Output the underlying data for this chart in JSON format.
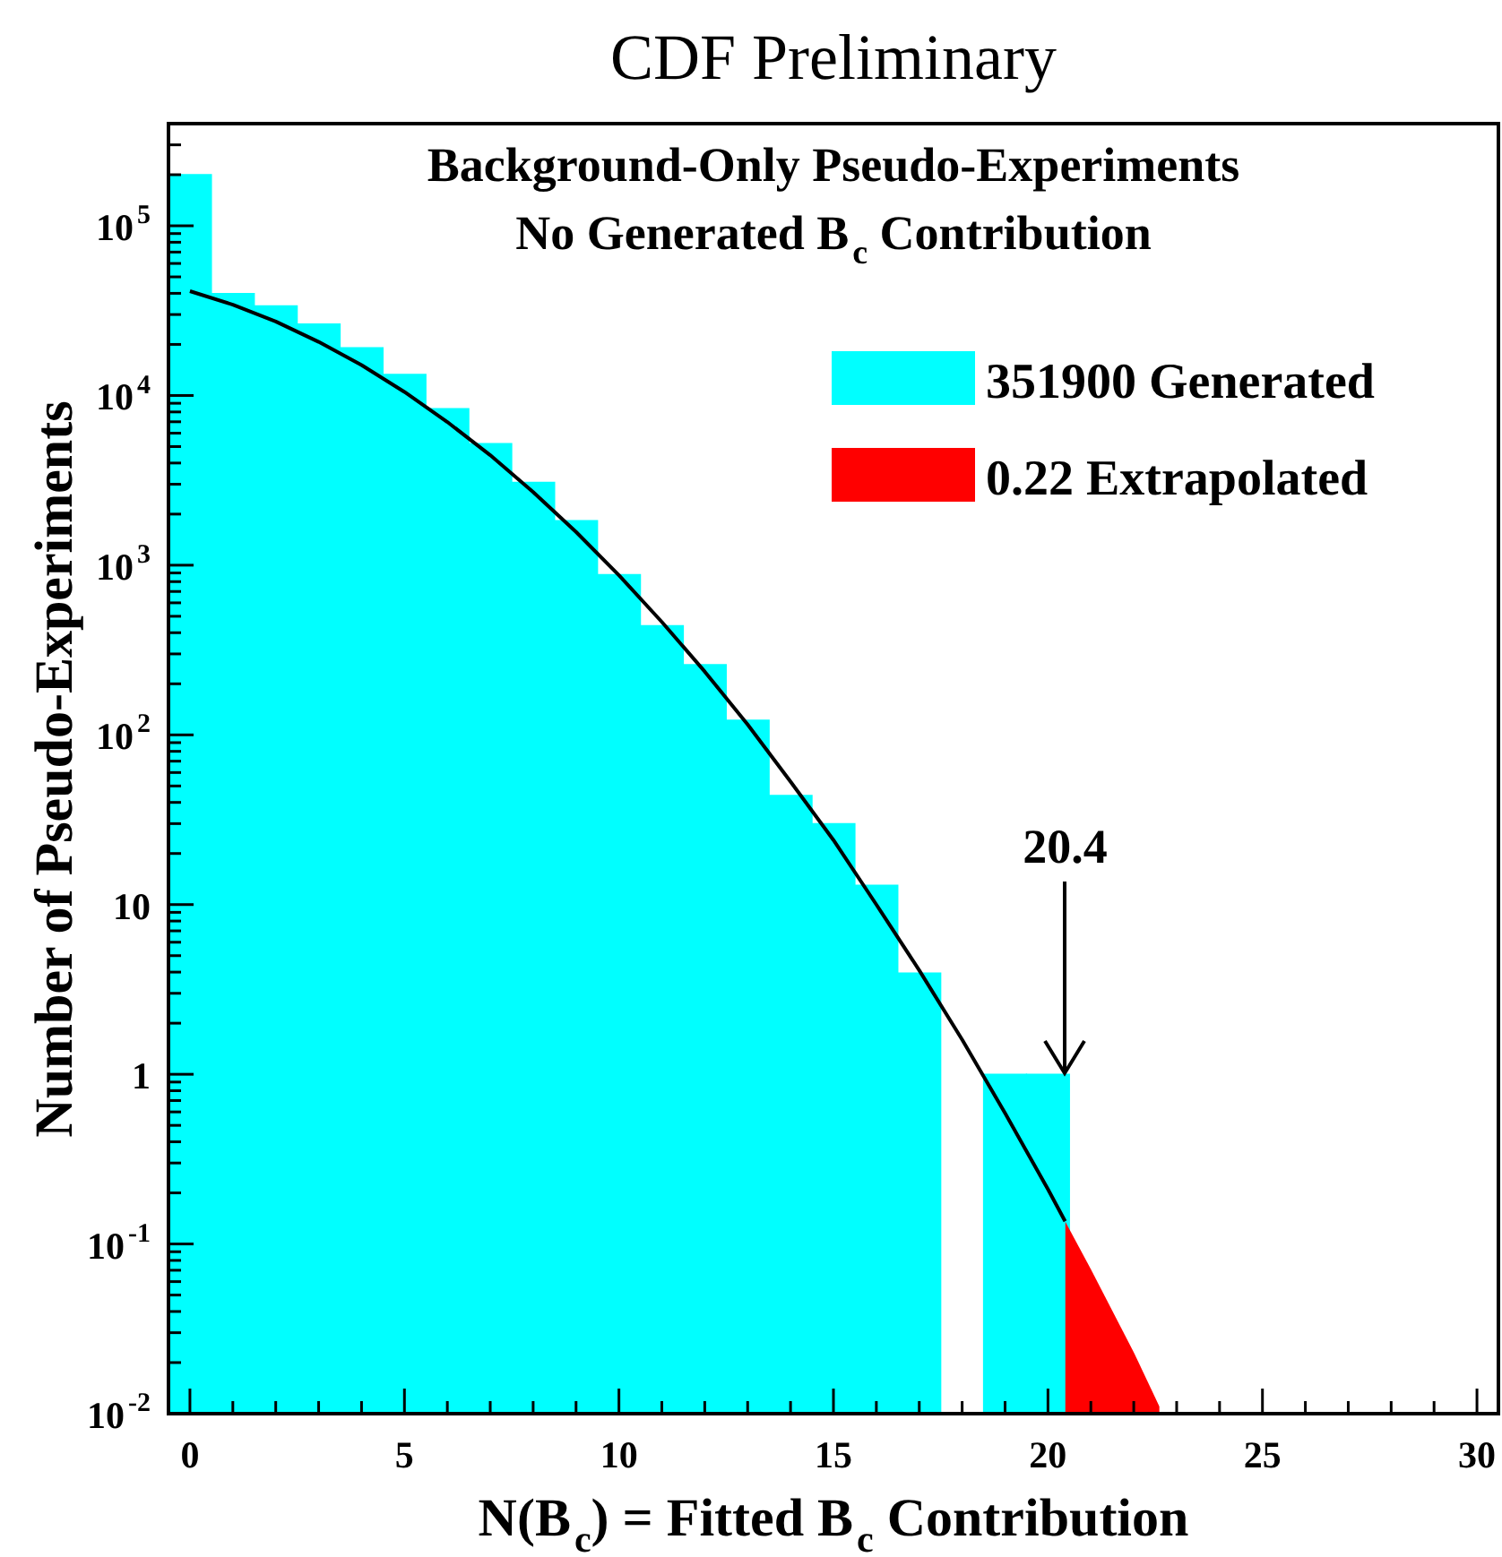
{
  "chart_data": {
    "type": "histogram",
    "title": "CDF Preliminary",
    "xlabel": "N(B$_{c}$) = Fitted B$_{c}$ Contribution",
    "ylabel": "Number of Pseudo-Experiments",
    "annotations": [
      "Background-Only Pseudo-Experiments",
      "No Generated B$_{c}$ Contribution",
      {
        "text": "20.4",
        "x": 20.4,
        "y": 1
      }
    ],
    "log": "y",
    "grid": false,
    "legend": "top right",
    "xlim": [
      -0.5,
      30.5
    ],
    "ylim": [
      0.01,
      400000
    ],
    "xticks": [
      0,
      {
        "value": 1,
        "label": null
      },
      {
        "value": 2,
        "label": null
      },
      {
        "value": 3,
        "label": null
      },
      {
        "value": 4,
        "label": null
      },
      5,
      {
        "value": 6,
        "label": null
      },
      {
        "value": 7,
        "label": null
      },
      {
        "value": 8,
        "label": null
      },
      {
        "value": 9,
        "label": null
      },
      10,
      {
        "value": 11,
        "label": null
      },
      {
        "value": 12,
        "label": null
      },
      {
        "value": 13,
        "label": null
      },
      {
        "value": 14,
        "label": null
      },
      15,
      {
        "value": 16,
        "label": null
      },
      {
        "value": 17,
        "label": null
      },
      {
        "value": 18,
        "label": null
      },
      {
        "value": 19,
        "label": null
      },
      20,
      {
        "value": 21,
        "label": null
      },
      {
        "value": 22,
        "label": null
      },
      {
        "value": 23,
        "label": null
      },
      {
        "value": 24,
        "label": null
      },
      25,
      {
        "value": 26,
        "label": null
      },
      {
        "value": 27,
        "label": null
      },
      {
        "value": 28,
        "label": null
      },
      {
        "value": 29,
        "label": null
      },
      30
    ],
    "yticks": [
      {
        "value": 0.01,
        "label": "10$^{-2}$"
      },
      {
        "value": 0.02,
        "label": null
      },
      {
        "value": 0.03,
        "label": null
      },
      {
        "value": 0.04,
        "label": null
      },
      {
        "value": 0.05,
        "label": null
      },
      {
        "value": 0.06,
        "label": null
      },
      {
        "value": 0.07,
        "label": null
      },
      {
        "value": 0.08,
        "label": null
      },
      {
        "value": 0.09,
        "label": null
      },
      {
        "value": 0.1,
        "label": "10$^{-1}$"
      },
      {
        "value": 0.2,
        "label": null
      },
      {
        "value": 0.3,
        "label": null
      },
      {
        "value": 0.4,
        "label": null
      },
      {
        "value": 0.5,
        "label": null
      },
      {
        "value": 0.6,
        "label": null
      },
      {
        "value": 0.7,
        "label": null
      },
      {
        "value": 0.8,
        "label": null
      },
      {
        "value": 0.9,
        "label": null
      },
      1,
      {
        "value": 2,
        "label": null
      },
      {
        "value": 3,
        "label": null
      },
      {
        "value": 4,
        "label": null
      },
      {
        "value": 5,
        "label": null
      },
      {
        "value": 6,
        "label": null
      },
      {
        "value": 7,
        "label": null
      },
      {
        "value": 8,
        "label": null
      },
      {
        "value": 9,
        "label": null
      },
      10,
      {
        "value": 20,
        "label": null
      },
      {
        "value": 30,
        "label": null
      },
      {
        "value": 40,
        "label": null
      },
      {
        "value": 50,
        "label": null
      },
      {
        "value": 60,
        "label": null
      },
      {
        "value": 70,
        "label": null
      },
      {
        "value": 80,
        "label": null
      },
      {
        "value": 90,
        "label": null
      },
      {
        "value": 100,
        "label": "10$^{2}$"
      },
      {
        "value": 200,
        "label": null
      },
      {
        "value": 300,
        "label": null
      },
      {
        "value": 400,
        "label": null
      },
      {
        "value": 500,
        "label": null
      },
      {
        "value": 600,
        "label": null
      },
      {
        "value": 700,
        "label": null
      },
      {
        "value": 800,
        "label": null
      },
      {
        "value": 900,
        "label": null
      },
      {
        "value": 1000,
        "label": "10$^{3}$"
      },
      {
        "value": 2000,
        "label": null
      },
      {
        "value": 3000,
        "label": null
      },
      {
        "value": 4000,
        "label": null
      },
      {
        "value": 5000,
        "label": null
      },
      {
        "value": 6000,
        "label": null
      },
      {
        "value": 7000,
        "label": null
      },
      {
        "value": 8000,
        "label": null
      },
      {
        "value": 9000,
        "label": null
      },
      {
        "value": 10000,
        "label": "10$^{4}$"
      },
      {
        "value": 20000,
        "label": null
      },
      {
        "value": 30000,
        "label": null
      },
      {
        "value": 40000,
        "label": null
      },
      {
        "value": 50000,
        "label": null
      },
      {
        "value": 60000,
        "label": null
      },
      {
        "value": 70000,
        "label": null
      },
      {
        "value": 80000,
        "label": null
      },
      {
        "value": 90000,
        "label": null
      },
      {
        "value": 100000,
        "label": "10$^{5}$"
      },
      {
        "value": 200000,
        "label": null
      },
      {
        "value": 300000,
        "label": null
      }
    ],
    "series": [
      {
        "name": "351900 Generated",
        "color": "#00ffff",
        "bins": [
          -0.5,
          0.5,
          1.5,
          2.5,
          3.5,
          4.5,
          5.5,
          6.5,
          7.5,
          8.5,
          9.5,
          10.5,
          11.5,
          12.5,
          13.5,
          14.5,
          15.5,
          16.5,
          17.5,
          18.5,
          19.5,
          20.5
        ],
        "values": [
          200000,
          39900,
          33700,
          26400,
          19100,
          13300,
          8360,
          5210,
          3080,
          1830,
          881,
          440,
          259,
          122,
          44,
          30,
          13,
          3.95,
          null,
          1,
          1
        ]
      },
      {
        "type": "area",
        "name": "0.22 Extrapolated",
        "color": "#ff0000",
        "x": [
          20.4,
          21,
          22,
          22.6
        ],
        "values": [
          0.136,
          0.071,
          0.023,
          0.011
        ]
      },
      {
        "type": "line",
        "color": "#000000",
        "x": [
          0,
          1,
          2,
          3,
          4,
          5,
          6,
          7,
          8,
          9,
          10,
          11,
          12,
          13,
          14,
          15,
          16,
          17,
          18,
          19,
          20,
          20.4
        ],
        "values": [
          41200,
          34300,
          27300,
          20700,
          15100,
          10500,
          6980,
          4450,
          2700,
          1570,
          873,
          463,
          236,
          115,
          53,
          24,
          10,
          4.1,
          1.6,
          0.59,
          0.21,
          0.136
        ]
      }
    ]
  }
}
